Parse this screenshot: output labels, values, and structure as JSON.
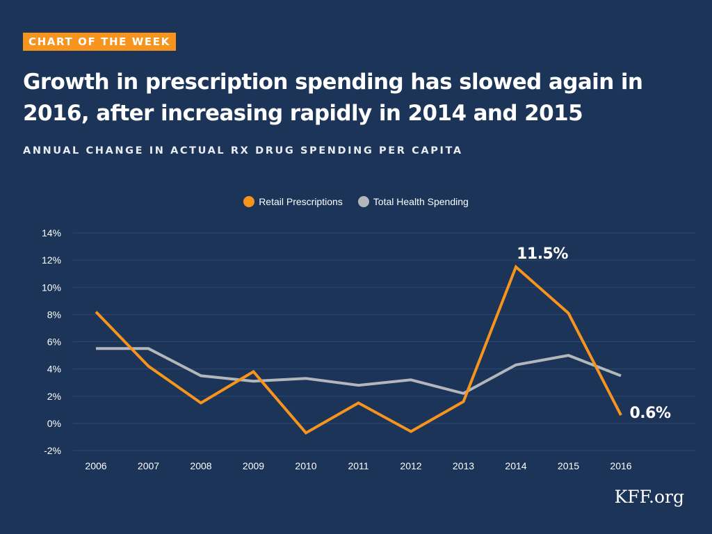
{
  "header": {
    "badge": "CHART OF THE WEEK",
    "title": "Growth in prescription spending has slowed again in 2016, after increasing rapidly in 2014 and 2015",
    "subtitle": "ANNUAL CHANGE IN ACTUAL RX DRUG SPENDING PER CAPITA"
  },
  "brand": "KFF.org",
  "colors": {
    "background": "#1b3458",
    "retail": "#f7941d",
    "total": "#b3b7bb",
    "badge": "#f7941d"
  },
  "chart_data": {
    "type": "line",
    "title": "",
    "xlabel": "",
    "ylabel": "",
    "x": [
      "2006",
      "2007",
      "2008",
      "2009",
      "2010",
      "2011",
      "2012",
      "2013",
      "2014",
      "2015",
      "2016"
    ],
    "ylim": [
      -2,
      14
    ],
    "yticks": [
      -2,
      0,
      2,
      4,
      6,
      8,
      10,
      12,
      14
    ],
    "ytick_labels": [
      "-2%",
      "0%",
      "2%",
      "4%",
      "6%",
      "8%",
      "10%",
      "12%",
      "14%"
    ],
    "grid": true,
    "legend_position": "top-center",
    "series": [
      {
        "name": "Retail Prescriptions",
        "color": "#f7941d",
        "values": [
          8.2,
          4.2,
          1.5,
          3.8,
          -0.7,
          1.5,
          -0.6,
          1.6,
          11.5,
          8.1,
          0.6
        ]
      },
      {
        "name": "Total Health Spending",
        "color": "#b3b7bb",
        "values": [
          5.5,
          5.5,
          3.5,
          3.1,
          3.3,
          2.8,
          3.2,
          2.2,
          4.3,
          5.0,
          3.5
        ]
      }
    ],
    "annotations": [
      {
        "label": "11.5%",
        "x": "2014",
        "y": 11.5
      },
      {
        "label": "0.6%",
        "x": "2016",
        "y": 0.6
      }
    ]
  }
}
